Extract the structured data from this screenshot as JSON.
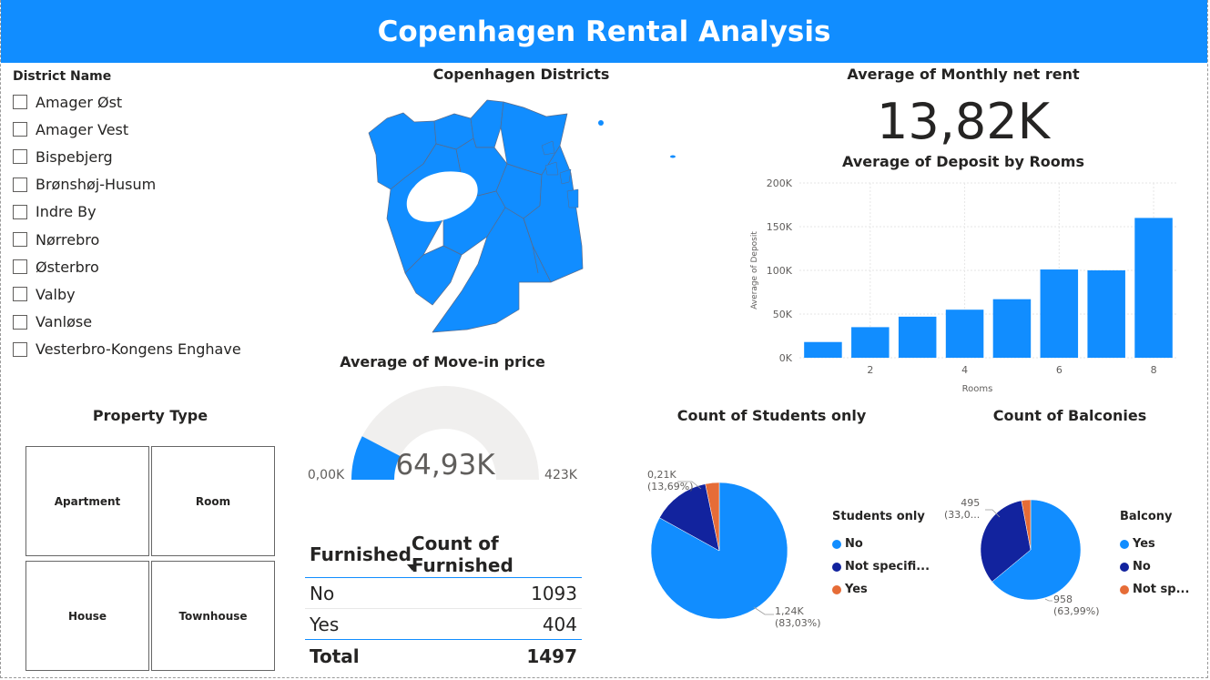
{
  "header": {
    "title": "Copenhagen Rental Analysis"
  },
  "slicer": {
    "title": "District Name",
    "items": [
      "Amager Øst",
      "Amager Vest",
      "Bispebjerg",
      "Brønshøj-Husum",
      "Indre By",
      "Nørrebro",
      "Østerbro",
      "Valby",
      "Vanløse",
      "Vesterbro-Kongens Enghave"
    ]
  },
  "map": {
    "title": "Copenhagen Districts"
  },
  "kpi": {
    "title": "Average of Monthly net rent",
    "value": "13,82K"
  },
  "deposit_chart": {
    "title": "Average of Deposit by Rooms",
    "xlabel": "Rooms",
    "ylabel": "Average of Deposit",
    "yticks": [
      "200K",
      "150K",
      "100K",
      "50K",
      "0K"
    ],
    "xticks": [
      "2",
      "4",
      "6",
      "8"
    ]
  },
  "gauge": {
    "title": "Average of Move-in price",
    "value_label": "64,93K",
    "min_label": "0,00K",
    "max_label": "423K",
    "fill_fraction": 0.1535
  },
  "property_type": {
    "title": "Property Type",
    "tiles": [
      "Apartment",
      "Room",
      "House",
      "Townhouse"
    ]
  },
  "furnished_table": {
    "col1": "Furnished",
    "col2": "Count of Furnished",
    "rows": [
      {
        "label": "No",
        "value": "1093"
      },
      {
        "label": "Yes",
        "value": "404"
      }
    ],
    "total_label": "Total",
    "total_value": "1497"
  },
  "students_pie": {
    "title": "Count of Students only",
    "legend_title": "Students only",
    "legend": [
      "No",
      "Not specifi...",
      "Yes"
    ],
    "label_small": "0,21K",
    "label_small_pct": "(13,69%)",
    "label_big": "1,24K",
    "label_big_pct": "(83,03%)"
  },
  "balconies_pie": {
    "title": "Count of Balconies",
    "legend_title": "Balcony",
    "legend": [
      "Yes",
      "No",
      "Not sp..."
    ],
    "label_small": "495",
    "label_small_pct": "(33,0...",
    "label_big": "958",
    "label_big_pct": "(63,99%)"
  },
  "colors": {
    "accent": "#118dff",
    "dark_blue": "#12239e",
    "orange": "#e66c37",
    "track": "#f0efee"
  },
  "chart_data": [
    {
      "type": "bar",
      "title": "Average of Deposit by Rooms",
      "xlabel": "Rooms",
      "ylabel": "Average of Deposit",
      "x": [
        1,
        2,
        3,
        4,
        5,
        6,
        7,
        8
      ],
      "values": [
        18000,
        35000,
        47000,
        55000,
        67000,
        101000,
        100000,
        160000
      ],
      "ylim": [
        0,
        200000
      ],
      "grid": true
    },
    {
      "type": "pie",
      "title": "Count of Students only",
      "categories": [
        "No",
        "Not specified",
        "Yes"
      ],
      "values": [
        1243,
        205,
        49
      ],
      "percent": [
        83.03,
        13.69,
        3.28
      ]
    },
    {
      "type": "pie",
      "title": "Count of Balconies",
      "categories": [
        "Yes",
        "No",
        "Not specified"
      ],
      "values": [
        958,
        495,
        44
      ],
      "percent": [
        63.99,
        33.06,
        2.95
      ]
    },
    {
      "type": "table",
      "title": "Furnished",
      "categories": [
        "No",
        "Yes"
      ],
      "values": [
        1093,
        404
      ],
      "total": 1497
    }
  ]
}
